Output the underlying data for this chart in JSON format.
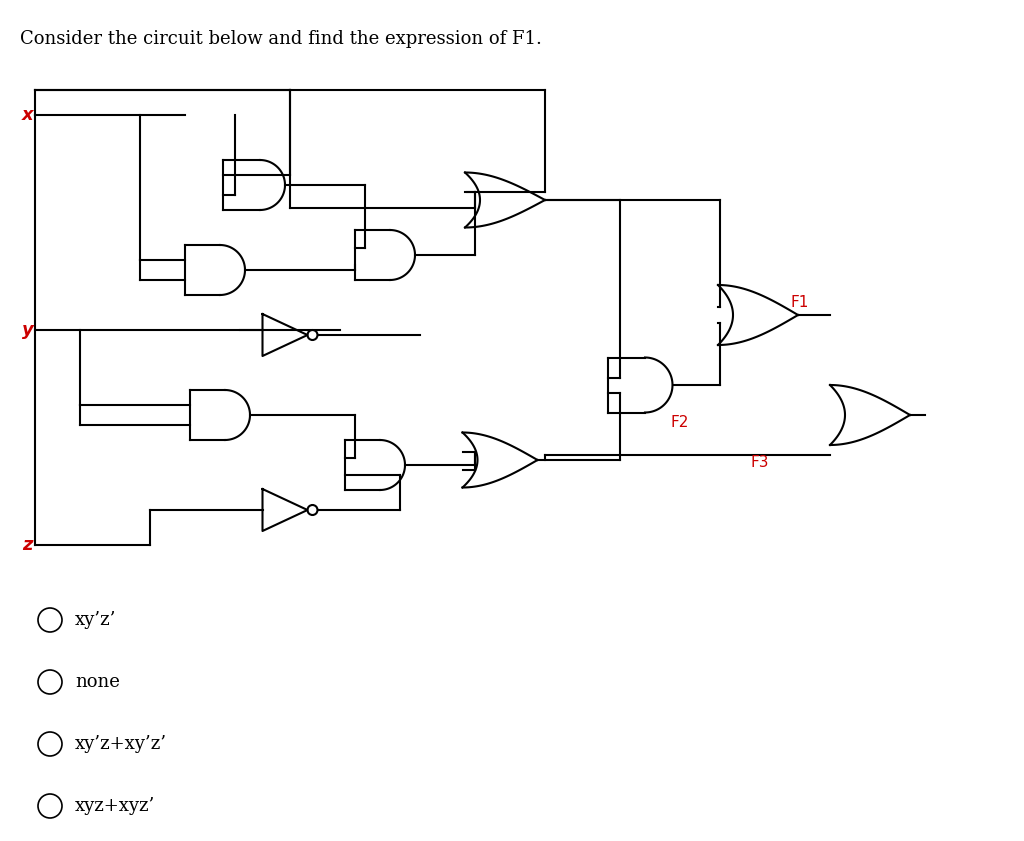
{
  "title": "Consider the circuit below and find the expression of F1.",
  "title_color": "#000000",
  "title_fontsize": 13,
  "background_color": "#ffffff",
  "circuit_color": "#000000",
  "label_color": "#cc0000",
  "input_labels": [
    "x",
    "y",
    "z"
  ],
  "output_labels": [
    "F1",
    "F2",
    "F3"
  ],
  "options": [
    "xy’z’",
    "none",
    "xy’z+xy’z’",
    "xyz+xyz’"
  ],
  "fig_width": 10.24,
  "fig_height": 8.41
}
